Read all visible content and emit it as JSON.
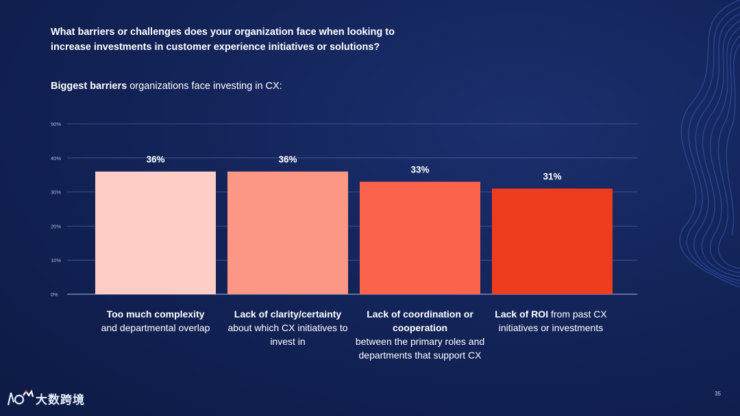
{
  "slide": {
    "question": "What barriers or challenges does your organization face when looking to increase investments in customer experience initiatives or solutions?",
    "subtitle_bold": "Biggest barriers",
    "subtitle_rest": " organizations face investing in CX:",
    "page_number": "35",
    "logo_text": "大数跨境"
  },
  "labels": [
    {
      "bold": "Too much complexity",
      "rest": "and departmental overlap"
    },
    {
      "bold": "Lack of clarity/certainty",
      "rest": "about which CX initiatives to invest in"
    },
    {
      "bold": "Lack of coordination or cooperation",
      "rest": "between the primary roles and departments that support CX"
    },
    {
      "bold": "Lack of ROI",
      "rest": " from past CX initiatives or investments"
    }
  ],
  "chart_data": {
    "type": "bar",
    "title": "Biggest barriers organizations face investing in CX:",
    "categories": [
      "Too much complexity and departmental overlap",
      "Lack of clarity/certainty about which CX initiatives to invest in",
      "Lack of coordination or cooperation between the primary roles and departments that support CX",
      "Lack of ROI from past CX initiatives or investments"
    ],
    "values": [
      36,
      36,
      33,
      31
    ],
    "value_labels": [
      "36%",
      "36%",
      "33%",
      "31%"
    ],
    "colors": [
      "#fdcdc6",
      "#fc9786",
      "#fb634d",
      "#ee3c1f"
    ],
    "ylim": [
      0,
      50
    ],
    "yticks": [
      0,
      10,
      20,
      30,
      40,
      50
    ],
    "ytick_labels": [
      "0%",
      "10%",
      "20%",
      "30%",
      "40%",
      "50%"
    ],
    "grid": true,
    "xlabel": "",
    "ylabel": ""
  }
}
